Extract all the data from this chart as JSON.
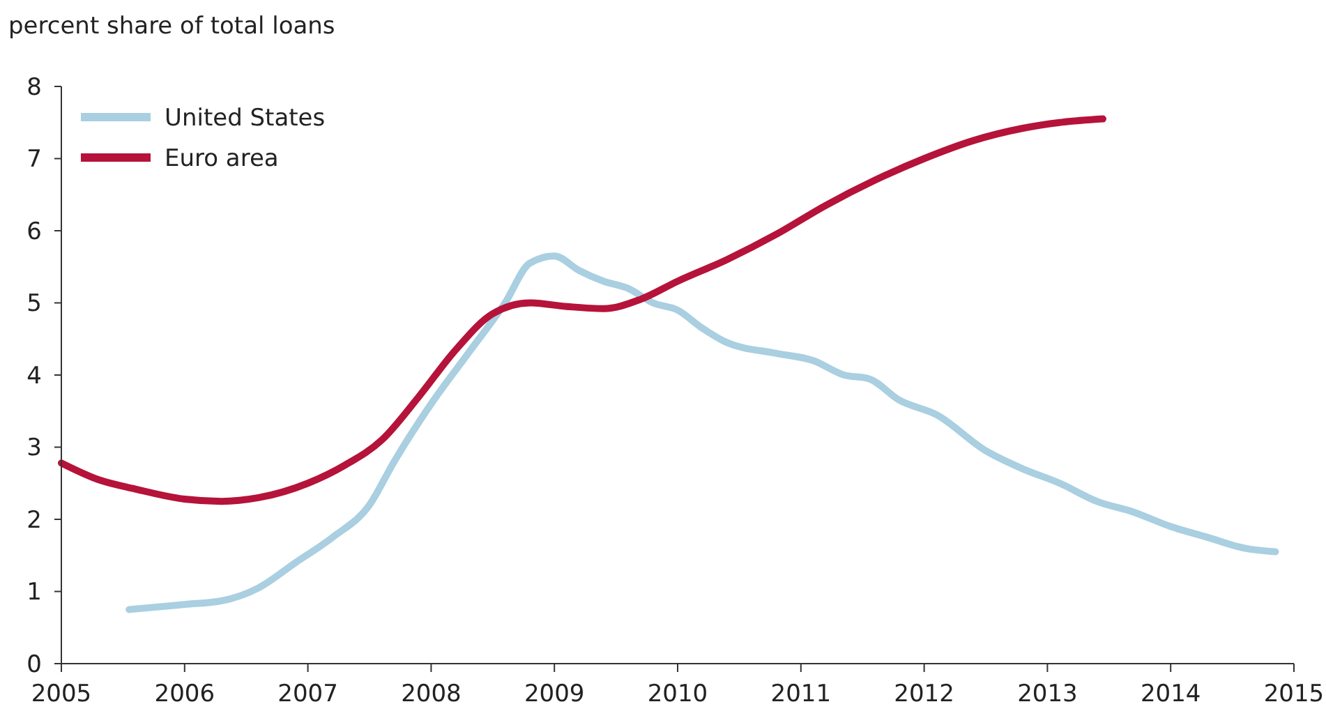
{
  "chart_data": {
    "type": "line",
    "ylabel": "percent share of total loans",
    "xlim": [
      2005,
      2015
    ],
    "xticks": [
      2005,
      2006,
      2007,
      2008,
      2009,
      2010,
      2011,
      2012,
      2013,
      2014,
      2015
    ],
    "ylim": [
      0,
      8
    ],
    "yticks": [
      0,
      1,
      2,
      3,
      4,
      5,
      6,
      7,
      8
    ],
    "grid": false,
    "legend": "top left",
    "marker": "none",
    "line_style": "solid",
    "series": [
      {
        "name": "United States",
        "color": "#a9cfe1",
        "x": [
          2005.55,
          2006.0,
          2006.3,
          2006.6,
          2006.9,
          2007.2,
          2007.5,
          2007.7,
          2008.0,
          2008.3,
          2008.6,
          2008.8,
          2009.0,
          2009.2,
          2009.4,
          2009.6,
          2009.8,
          2010.0,
          2010.2,
          2010.4,
          2010.8,
          2011.1,
          2011.35,
          2011.55,
          2011.8,
          2012.1,
          2012.5,
          2012.8,
          2013.1,
          2013.4,
          2013.7,
          2014.0,
          2014.3,
          2014.6,
          2014.85
        ],
        "values": [
          0.75,
          0.82,
          0.87,
          1.05,
          1.4,
          1.75,
          2.2,
          2.8,
          3.6,
          4.3,
          5.0,
          5.55,
          5.65,
          5.45,
          5.3,
          5.2,
          5.0,
          4.9,
          4.65,
          4.45,
          4.3,
          4.2,
          4.0,
          3.95,
          3.65,
          3.45,
          2.95,
          2.7,
          2.5,
          2.25,
          2.1,
          1.9,
          1.75,
          1.6,
          1.55
        ]
      },
      {
        "name": "Euro area",
        "color": "#b5133a",
        "x": [
          2005.0,
          2005.3,
          2005.6,
          2006.0,
          2006.3,
          2006.6,
          2007.0,
          2007.3,
          2007.6,
          2007.9,
          2008.2,
          2008.5,
          2008.8,
          2009.1,
          2009.4,
          2009.7,
          2010.0,
          2010.4,
          2010.8,
          2011.2,
          2011.6,
          2012.0,
          2012.4,
          2012.8,
          2013.1,
          2013.45
        ],
        "values": [
          2.78,
          2.55,
          2.42,
          2.28,
          2.25,
          2.3,
          2.5,
          2.75,
          3.1,
          3.7,
          4.35,
          4.85,
          5.0,
          4.95,
          4.92,
          5.05,
          5.3,
          5.6,
          5.95,
          6.35,
          6.7,
          7.0,
          7.25,
          7.42,
          7.5,
          7.55
        ]
      }
    ]
  }
}
